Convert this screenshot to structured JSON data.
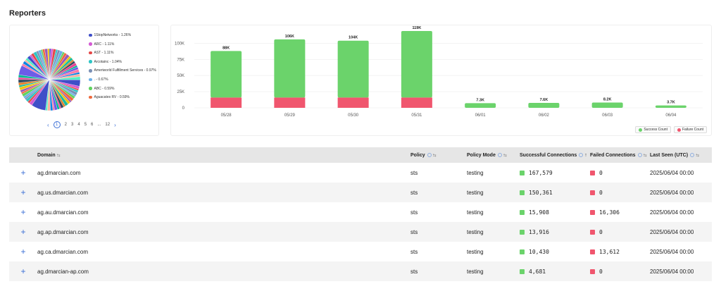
{
  "page_title": "Reporters",
  "colors": {
    "success": "#6bd36b",
    "failure": "#f0566e",
    "accent": "#3b6fd6"
  },
  "pie": {
    "legend": [
      {
        "label": "1StopNetworks - 1.26%",
        "color": "#3f4fc8"
      },
      {
        "label": "ARC - 1.11%",
        "color": "#d45bd4"
      },
      {
        "label": "AST - 1.11%",
        "color": "#e44848"
      },
      {
        "label": "Arcotainc - 1.04%",
        "color": "#2fc5c5"
      },
      {
        "label": "Ameriworld Fulfillment Services - 0.97%",
        "color": "#7a90b5"
      },
      {
        "label": ". - 0.67%",
        "color": "#6ab0e8"
      },
      {
        "label": "ABC - 0.59%",
        "color": "#5fd35f"
      },
      {
        "label": "Aguacates RV - 0.59%",
        "color": "#ef6a3d"
      }
    ],
    "pager": {
      "prev": "‹",
      "current": "1",
      "pages": [
        "2",
        "3",
        "4",
        "5",
        "6"
      ],
      "ellipsis": "...",
      "last": "12",
      "next": "›"
    }
  },
  "chart_data": {
    "type": "bar",
    "stacked": true,
    "categories": [
      "05/28",
      "05/29",
      "05/30",
      "05/31",
      "06/01",
      "06/02",
      "06/03",
      "06/04"
    ],
    "series": [
      {
        "name": "Success Count",
        "values": [
          72000,
          90000,
          88000,
          103000,
          7300,
          7600,
          8200,
          3700
        ]
      },
      {
        "name": "Failure Count",
        "values": [
          16000,
          16000,
          16000,
          16000,
          0,
          0,
          0,
          0
        ]
      }
    ],
    "total_labels": [
      "88K",
      "106K",
      "104K",
      "119K",
      "7.3K",
      "7.6K",
      "8.2K",
      "3.7K"
    ],
    "y_ticks": [
      "0",
      "25K",
      "50K",
      "75K",
      "100K"
    ],
    "ylim": [
      0,
      119000
    ],
    "legend_position": "bottom-right"
  },
  "legend_labels": {
    "success": "Success Count",
    "failure": "Failure Count"
  },
  "table": {
    "headers": {
      "domain": "Domain",
      "policy": "Policy",
      "policy_mode": "Policy Mode",
      "successful": "Successful Connections",
      "failed": "Failed Connections",
      "last_seen": "Last Seen (UTC)"
    },
    "rows": [
      {
        "domain": "ag.dmarcian.com",
        "policy": "sts",
        "mode": "testing",
        "success": "167,579",
        "failed": "0",
        "last_seen": "2025/06/04 00:00"
      },
      {
        "domain": "ag.us.dmarcian.com",
        "policy": "sts",
        "mode": "testing",
        "success": "150,361",
        "failed": "0",
        "last_seen": "2025/06/04 00:00"
      },
      {
        "domain": "ag.au.dmarcian.com",
        "policy": "sts",
        "mode": "testing",
        "success": "15,908",
        "failed": "16,306",
        "last_seen": "2025/06/04 00:00"
      },
      {
        "domain": "ag.ap.dmarcian.com",
        "policy": "sts",
        "mode": "testing",
        "success": "13,916",
        "failed": "0",
        "last_seen": "2025/06/04 00:00"
      },
      {
        "domain": "ag.ca.dmarcian.com",
        "policy": "sts",
        "mode": "testing",
        "success": "10,430",
        "failed": "13,612",
        "last_seen": "2025/06/04 00:00"
      },
      {
        "domain": "ag.dmarcian-ap.com",
        "policy": "sts",
        "mode": "testing",
        "success": "4,681",
        "failed": "0",
        "last_seen": "2025/06/04 00:00"
      }
    ]
  }
}
